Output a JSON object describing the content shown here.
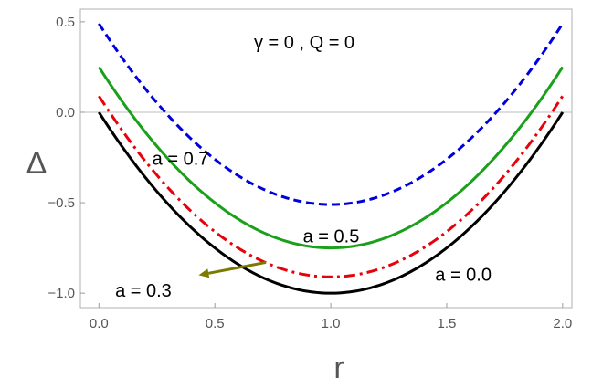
{
  "chart_data": {
    "type": "line",
    "title": "γ = 0 ,  Q = 0",
    "xlabel": "r",
    "ylabel": "Δ",
    "xlim": [
      -0.08,
      2.04
    ],
    "ylim": [
      -1.08,
      0.57
    ],
    "x_ticks": [
      0.0,
      0.5,
      1.0,
      1.5,
      2.0
    ],
    "x_tick_labels": [
      "0.0",
      "0.5",
      "1.0",
      "1.5",
      "2.0"
    ],
    "y_ticks": [
      0.5,
      0.0,
      -0.5,
      -1.0
    ],
    "y_tick_labels": [
      "0.5",
      "0.0",
      "−0.5",
      "−1.0"
    ],
    "grid": false,
    "zero_line": true,
    "series": [
      {
        "name": "a = 0.0",
        "color": "#000000",
        "style": "solid",
        "a2": 0.0
      },
      {
        "name": "a = 0.3",
        "color": "#e8000a",
        "style": "dashdot",
        "a2": 0.09
      },
      {
        "name": "a = 0.5",
        "color": "#1aa01a",
        "style": "solid",
        "a2": 0.25
      },
      {
        "name": "a = 0.7",
        "color": "#0000dd",
        "style": "dashed",
        "a2": 0.49
      }
    ],
    "annotations": [
      {
        "text": "a = 0.7",
        "x": 0.23,
        "y": -0.29
      },
      {
        "text": "a = 0.5",
        "x": 0.88,
        "y": -0.72
      },
      {
        "text": "a = 0.0",
        "x": 1.45,
        "y": -0.93
      },
      {
        "text": "a = 0.3",
        "x": 0.07,
        "y": -1.02
      }
    ],
    "arrow": {
      "from": [
        0.72,
        -0.83
      ],
      "to": [
        0.43,
        -0.9
      ],
      "color": "#7a7a00"
    }
  }
}
